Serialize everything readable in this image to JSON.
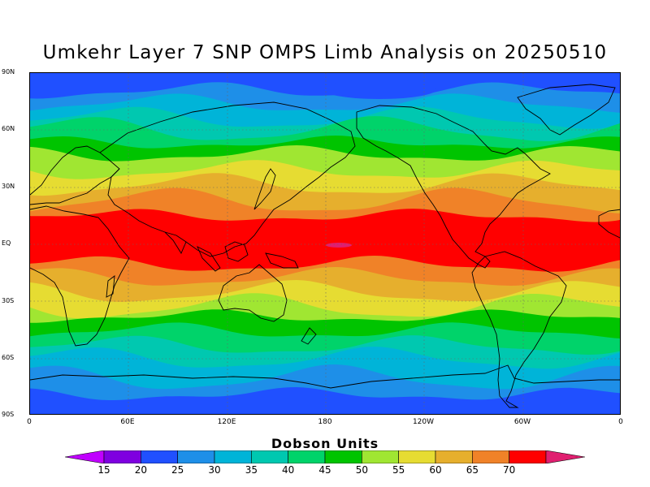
{
  "title": "Umkehr Layer 7 SNP OMPS Limb Analysis on 20250510",
  "lat_labels": [
    "90N",
    "60N",
    "30N",
    "EQ",
    "30S",
    "60S",
    "90S"
  ],
  "lon_labels": [
    "0",
    "60E",
    "120E",
    "180",
    "120W",
    "60W",
    "0"
  ],
  "colorbar": {
    "title": "Dobson Units",
    "levels": [
      "15",
      "20",
      "25",
      "30",
      "35",
      "40",
      "45",
      "50",
      "55",
      "60",
      "65",
      "70"
    ],
    "colors": [
      "#c000ff",
      "#7f00e0",
      "#2050ff",
      "#1e8fe8",
      "#00b4d8",
      "#00c8b0",
      "#00d36a",
      "#00c400",
      "#a0e632",
      "#e6dc32",
      "#e6af2d",
      "#f08228",
      "#ff0000",
      "#e01f70"
    ]
  },
  "map": {
    "projection": "cylindrical-equidistant",
    "lon_range": [
      0,
      360
    ],
    "lat_range": [
      -90,
      90
    ],
    "variable": "ozone",
    "units": "Dobson Units",
    "zonal_bands_from_north": [
      "#2050ff",
      "#1e8fe8",
      "#00b4d8",
      "#00c8b0",
      "#00d36a",
      "#00c400",
      "#a0e632",
      "#e6dc32",
      "#e6af2d",
      "#f08228",
      "#ff0000",
      "#f08228",
      "#e6af2d",
      "#e6dc32",
      "#a0e632",
      "#00c400",
      "#00d36a",
      "#00c8b0",
      "#00b4d8",
      "#1e8fe8",
      "#2050ff"
    ],
    "gridlines": "dotted"
  }
}
